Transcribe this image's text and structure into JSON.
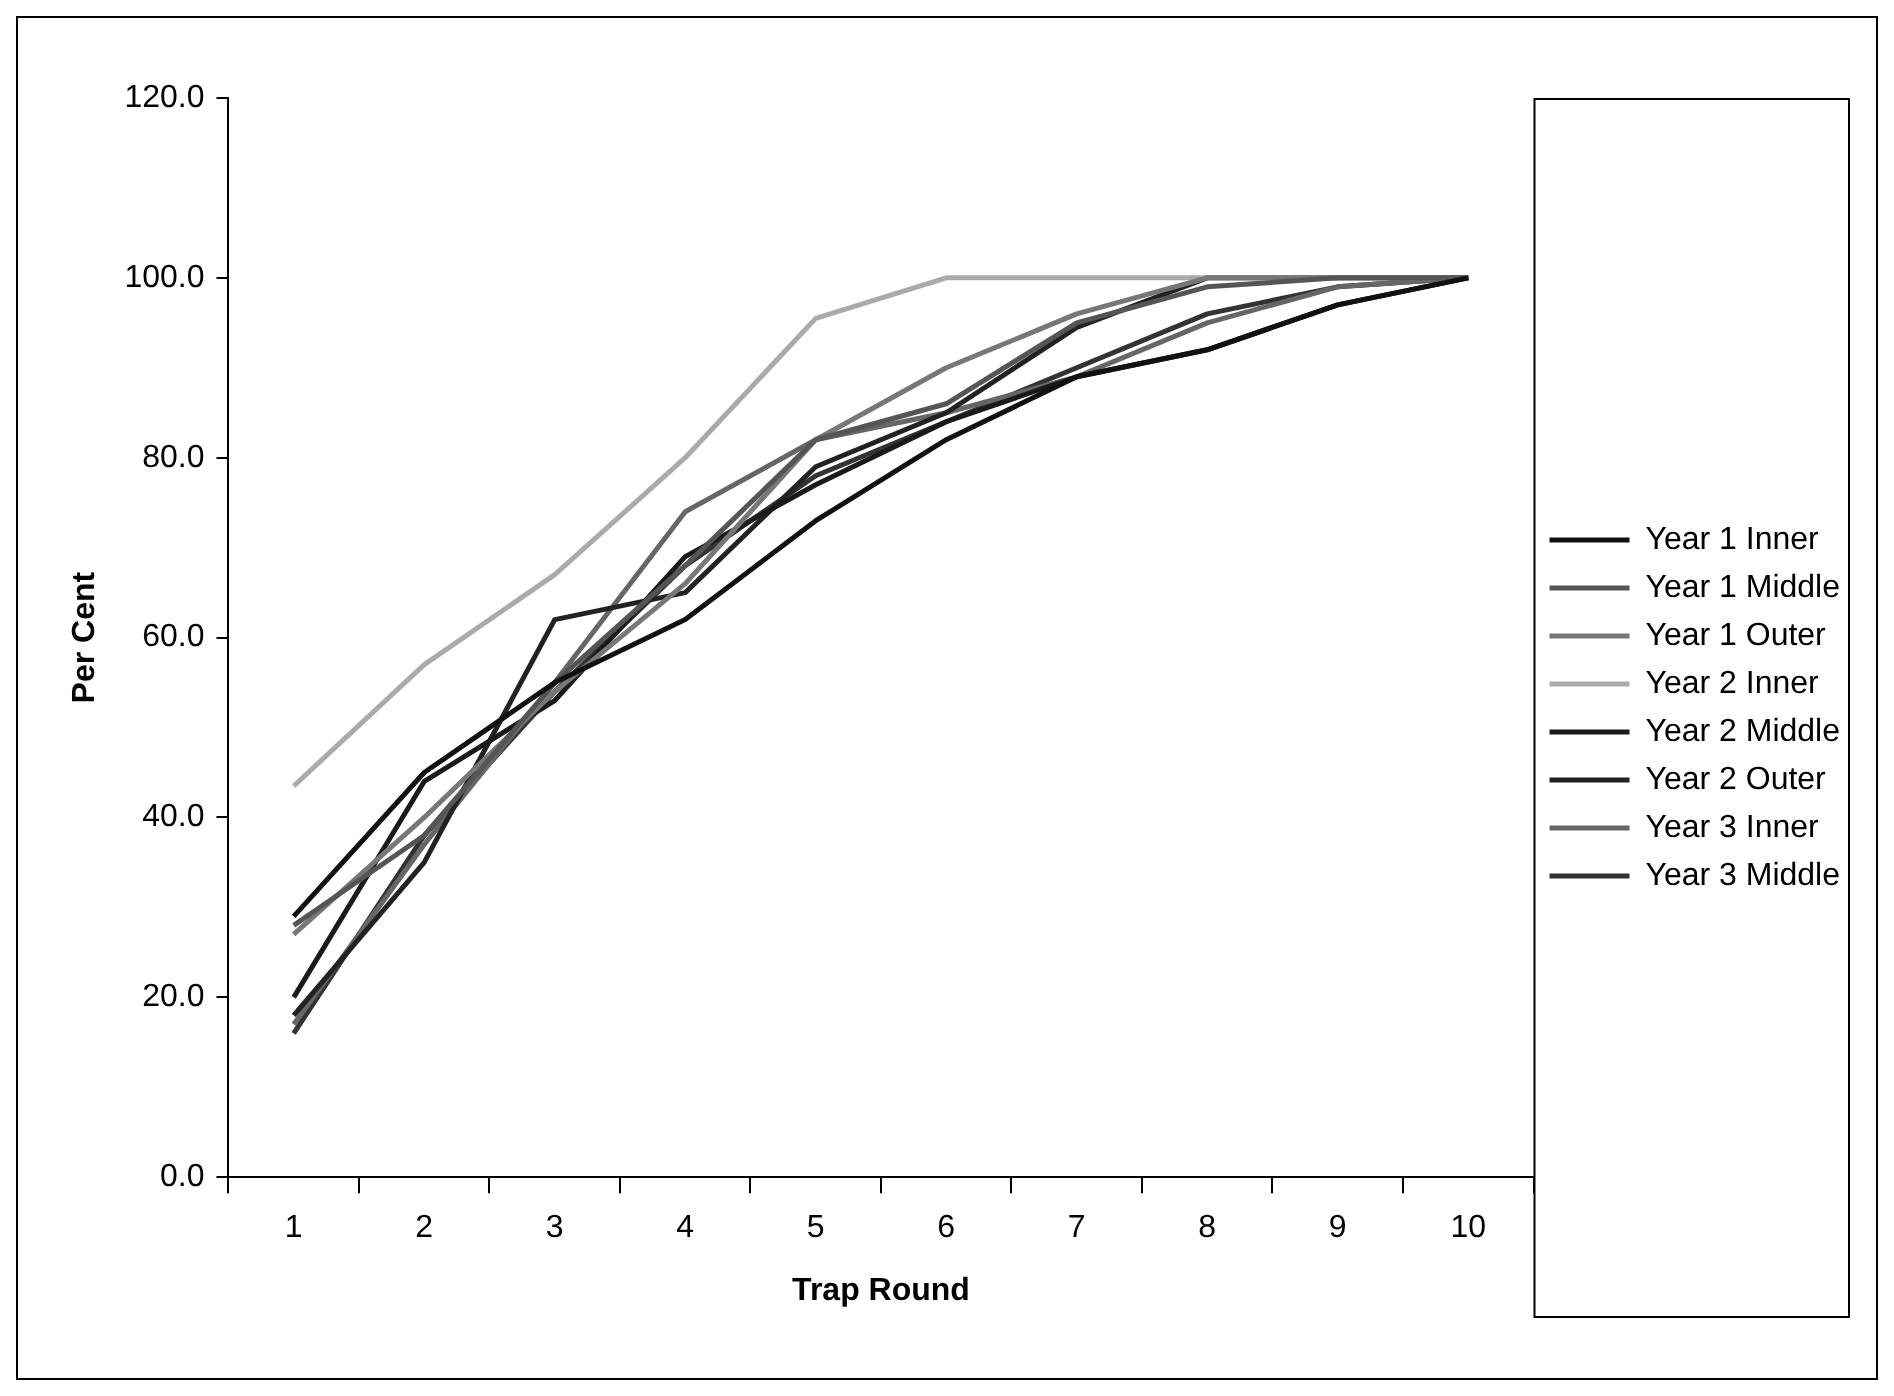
{
  "chart_data": {
    "type": "line",
    "xlabel": "Trap Round",
    "ylabel": "Per Cent",
    "categories": [
      "1",
      "2",
      "3",
      "4",
      "5",
      "6",
      "7",
      "8",
      "9",
      "10"
    ],
    "ylim": [
      0,
      120
    ],
    "yticks": [
      {
        "value": 0,
        "label": "0.0"
      },
      {
        "value": 20,
        "label": "20.0"
      },
      {
        "value": 40,
        "label": "40.0"
      },
      {
        "value": 60,
        "label": "60.0"
      },
      {
        "value": 80,
        "label": "80.0"
      },
      {
        "value": 100,
        "label": "100.0"
      },
      {
        "value": 120,
        "label": "120.0"
      }
    ],
    "legend": "right",
    "marker": "none",
    "line_style": "solid",
    "series": [
      {
        "name": "Year 1 Inner",
        "color": "#111111",
        "values": [
          29,
          45,
          55,
          62,
          73,
          82,
          89,
          92,
          97,
          100
        ]
      },
      {
        "name": "Year 1 Middle",
        "color": "#555555",
        "values": [
          28,
          38,
          55,
          68,
          82,
          86,
          95,
          99,
          100,
          100
        ]
      },
      {
        "name": "Year 1 Outer",
        "color": "#777777",
        "values": [
          27,
          40,
          54,
          66,
          82,
          90,
          96,
          100,
          100,
          100
        ]
      },
      {
        "name": "Year 2 Inner",
        "color": "#aaaaaa",
        "values": [
          43.5,
          57,
          67,
          80,
          95.5,
          100,
          100,
          100,
          100,
          100
        ]
      },
      {
        "name": "Year 2 Middle",
        "color": "#1a1a1a",
        "values": [
          20,
          44,
          53,
          69,
          77,
          84,
          89,
          92,
          97,
          100
        ]
      },
      {
        "name": "Year 2 Outer",
        "color": "#222222",
        "values": [
          18,
          35,
          62,
          65,
          79,
          85,
          94.5,
          100,
          100,
          100
        ]
      },
      {
        "name": "Year 3 Inner",
        "color": "#666666",
        "values": [
          17,
          37,
          55,
          74,
          82,
          85,
          89,
          95,
          99,
          100
        ]
      },
      {
        "name": "Year 3 Middle",
        "color": "#333333",
        "values": [
          16,
          38,
          54,
          68,
          78,
          84,
          90,
          96,
          99,
          100
        ]
      }
    ]
  }
}
